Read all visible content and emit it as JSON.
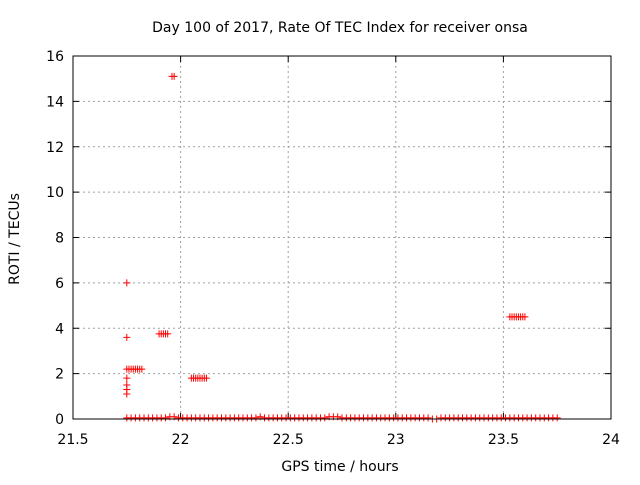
{
  "chart_data": {
    "type": "scatter",
    "title": "Day 100 of 2017, Rate Of TEC Index for receiver onsa",
    "xlabel": "GPS time / hours",
    "ylabel": "ROTI / TECUs",
    "xlim": [
      21.5,
      24
    ],
    "ylim": [
      0,
      16
    ],
    "xticks": [
      21.5,
      22,
      22.5,
      23,
      23.5,
      24
    ],
    "xtick_labels": [
      "21.5",
      "22",
      "22.5",
      "23",
      "23.5",
      "24"
    ],
    "yticks": [
      0,
      2,
      4,
      6,
      8,
      10,
      12,
      14,
      16
    ],
    "ytick_labels": [
      "0",
      "2",
      "4",
      "6",
      "8",
      "10",
      "12",
      "14",
      "16"
    ],
    "grid": true,
    "marker": "plus",
    "color": "#ff0000",
    "series": [
      {
        "points": [
          [
            21.75,
            6.0
          ],
          [
            21.75,
            3.6
          ],
          [
            21.75,
            2.2
          ],
          [
            21.75,
            1.8
          ],
          [
            21.75,
            1.5
          ],
          [
            21.75,
            1.3
          ],
          [
            21.75,
            1.1
          ],
          [
            21.76,
            2.2
          ],
          [
            21.77,
            2.2
          ],
          [
            21.78,
            2.2
          ],
          [
            21.79,
            2.2
          ],
          [
            21.8,
            2.2
          ],
          [
            21.81,
            2.2
          ],
          [
            21.82,
            2.2
          ],
          [
            21.9,
            3.75
          ],
          [
            21.91,
            3.75
          ],
          [
            21.92,
            3.75
          ],
          [
            21.93,
            3.75
          ],
          [
            21.94,
            3.75
          ],
          [
            21.96,
            15.1
          ],
          [
            21.97,
            15.1
          ],
          [
            22.05,
            1.8
          ],
          [
            22.06,
            1.8
          ],
          [
            22.07,
            1.8
          ],
          [
            22.08,
            1.8
          ],
          [
            22.09,
            1.8
          ],
          [
            22.1,
            1.8
          ],
          [
            22.11,
            1.8
          ],
          [
            22.12,
            1.8
          ],
          [
            23.53,
            4.5
          ],
          [
            23.54,
            4.5
          ],
          [
            23.55,
            4.5
          ],
          [
            23.56,
            4.5
          ],
          [
            23.57,
            4.5
          ],
          [
            23.58,
            4.5
          ],
          [
            23.59,
            4.5
          ],
          [
            23.6,
            4.5
          ],
          [
            21.75,
            0.05
          ],
          [
            21.77,
            0.05
          ],
          [
            21.79,
            0.05
          ],
          [
            21.81,
            0.05
          ],
          [
            21.83,
            0.05
          ],
          [
            21.85,
            0.05
          ],
          [
            21.87,
            0.05
          ],
          [
            21.89,
            0.05
          ],
          [
            21.91,
            0.05
          ],
          [
            21.93,
            0.05
          ],
          [
            21.95,
            0.1
          ],
          [
            21.97,
            0.1
          ],
          [
            21.99,
            0.05
          ],
          [
            22.01,
            0.05
          ],
          [
            22.03,
            0.05
          ],
          [
            22.05,
            0.05
          ],
          [
            22.07,
            0.05
          ],
          [
            22.09,
            0.05
          ],
          [
            22.11,
            0.05
          ],
          [
            22.13,
            0.05
          ],
          [
            22.15,
            0.05
          ],
          [
            22.17,
            0.05
          ],
          [
            22.19,
            0.05
          ],
          [
            22.21,
            0.05
          ],
          [
            22.23,
            0.05
          ],
          [
            22.25,
            0.05
          ],
          [
            22.27,
            0.05
          ],
          [
            22.29,
            0.05
          ],
          [
            22.31,
            0.05
          ],
          [
            22.33,
            0.05
          ],
          [
            22.35,
            0.05
          ],
          [
            22.37,
            0.1
          ],
          [
            22.39,
            0.05
          ],
          [
            22.41,
            0.05
          ],
          [
            22.43,
            0.05
          ],
          [
            22.45,
            0.05
          ],
          [
            22.47,
            0.05
          ],
          [
            22.49,
            0.05
          ],
          [
            22.51,
            0.05
          ],
          [
            22.53,
            0.05
          ],
          [
            22.55,
            0.05
          ],
          [
            22.57,
            0.05
          ],
          [
            22.59,
            0.05
          ],
          [
            22.61,
            0.05
          ],
          [
            22.63,
            0.05
          ],
          [
            22.65,
            0.05
          ],
          [
            22.67,
            0.05
          ],
          [
            22.69,
            0.1
          ],
          [
            22.71,
            0.1
          ],
          [
            22.73,
            0.1
          ],
          [
            22.75,
            0.05
          ],
          [
            22.77,
            0.05
          ],
          [
            22.79,
            0.05
          ],
          [
            22.81,
            0.05
          ],
          [
            22.83,
            0.05
          ],
          [
            22.85,
            0.05
          ],
          [
            22.87,
            0.05
          ],
          [
            22.89,
            0.05
          ],
          [
            22.91,
            0.05
          ],
          [
            22.93,
            0.05
          ],
          [
            22.95,
            0.05
          ],
          [
            22.97,
            0.05
          ],
          [
            22.99,
            0.05
          ],
          [
            23.01,
            0.05
          ],
          [
            23.03,
            0.05
          ],
          [
            23.05,
            0.05
          ],
          [
            23.07,
            0.05
          ],
          [
            23.09,
            0.05
          ],
          [
            23.11,
            0.05
          ],
          [
            23.13,
            0.05
          ],
          [
            23.15,
            0.05
          ],
          [
            23.17,
            0.0
          ],
          [
            23.19,
            0.0
          ],
          [
            23.21,
            0.05
          ],
          [
            23.23,
            0.05
          ],
          [
            23.25,
            0.05
          ],
          [
            23.27,
            0.05
          ],
          [
            23.29,
            0.05
          ],
          [
            23.31,
            0.05
          ],
          [
            23.33,
            0.05
          ],
          [
            23.35,
            0.05
          ],
          [
            23.37,
            0.05
          ],
          [
            23.39,
            0.05
          ],
          [
            23.41,
            0.05
          ],
          [
            23.43,
            0.05
          ],
          [
            23.45,
            0.05
          ],
          [
            23.47,
            0.05
          ],
          [
            23.49,
            0.05
          ],
          [
            23.51,
            0.05
          ],
          [
            23.53,
            0.05
          ],
          [
            23.55,
            0.05
          ],
          [
            23.57,
            0.05
          ],
          [
            23.59,
            0.05
          ],
          [
            23.61,
            0.05
          ],
          [
            23.63,
            0.05
          ],
          [
            23.65,
            0.05
          ],
          [
            23.67,
            0.05
          ],
          [
            23.69,
            0.05
          ],
          [
            23.71,
            0.05
          ],
          [
            23.73,
            0.05
          ],
          [
            23.75,
            0.05
          ]
        ]
      }
    ]
  }
}
